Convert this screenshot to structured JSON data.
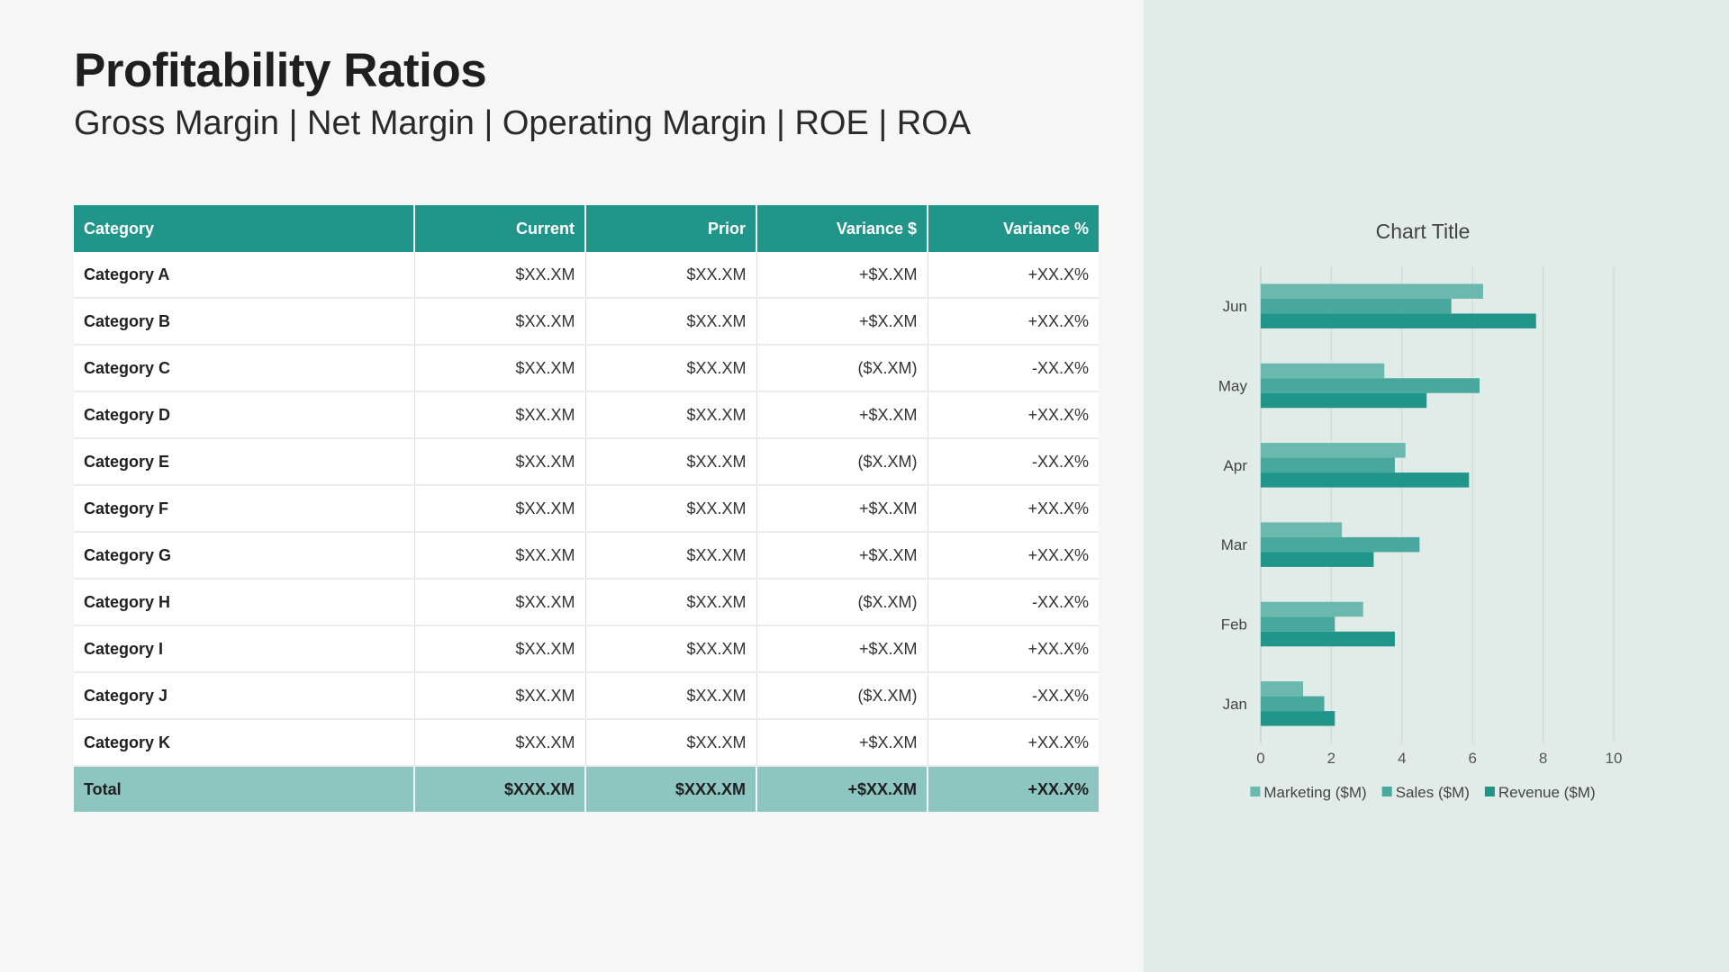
{
  "header": {
    "title": "Profitability Ratios",
    "subtitle": "Gross Margin | Net Margin | Operating Margin | ROE | ROA"
  },
  "table": {
    "columns": [
      "Category",
      "Current",
      "Prior",
      "Variance $",
      "Variance %"
    ],
    "rows": [
      [
        "Category A",
        "$XX.XM",
        "$XX.XM",
        "+$X.XM",
        "+XX.X%"
      ],
      [
        "Category B",
        "$XX.XM",
        "$XX.XM",
        "+$X.XM",
        "+XX.X%"
      ],
      [
        "Category C",
        "$XX.XM",
        "$XX.XM",
        "($X.XM)",
        "-XX.X%"
      ],
      [
        "Category D",
        "$XX.XM",
        "$XX.XM",
        "+$X.XM",
        "+XX.X%"
      ],
      [
        "Category E",
        "$XX.XM",
        "$XX.XM",
        "($X.XM)",
        "-XX.X%"
      ],
      [
        "Category F",
        "$XX.XM",
        "$XX.XM",
        "+$X.XM",
        "+XX.X%"
      ],
      [
        "Category G",
        "$XX.XM",
        "$XX.XM",
        "+$X.XM",
        "+XX.X%"
      ],
      [
        "Category H",
        "$XX.XM",
        "$XX.XM",
        "($X.XM)",
        "-XX.X%"
      ],
      [
        "Category I",
        "$XX.XM",
        "$XX.XM",
        "+$X.XM",
        "+XX.X%"
      ],
      [
        "Category J",
        "$XX.XM",
        "$XX.XM",
        "($X.XM)",
        "-XX.X%"
      ],
      [
        "Category K",
        "$XX.XM",
        "$XX.XM",
        "+$X.XM",
        "+XX.X%"
      ]
    ],
    "total": [
      "Total",
      "$XXX.XM",
      "$XXX.XM",
      "+$XX.XM",
      "+XX.X%"
    ]
  },
  "colors": {
    "accent": "#22958a",
    "total_row": "#8dc5c0",
    "panel": "#e1ece9"
  },
  "chart_data": {
    "type": "bar",
    "orientation": "horizontal",
    "title": "Chart Title",
    "categories": [
      "Jan",
      "Feb",
      "Mar",
      "Apr",
      "May",
      "Jun"
    ],
    "series": [
      {
        "name": "Marketing ($M)",
        "color": "#6bb8ae",
        "values": [
          1.2,
          2.9,
          2.3,
          4.1,
          3.5,
          6.3
        ]
      },
      {
        "name": "Sales ($M)",
        "color": "#48a89e",
        "values": [
          1.8,
          2.1,
          4.5,
          3.8,
          6.2,
          5.4
        ]
      },
      {
        "name": "Revenue ($M)",
        "color": "#22958a",
        "values": [
          2.1,
          3.8,
          3.2,
          5.9,
          4.7,
          7.8
        ]
      }
    ],
    "xlim": [
      0,
      10
    ],
    "xticks": [
      0,
      2,
      4,
      6,
      8,
      10
    ],
    "grid": true,
    "legend": "bottom"
  }
}
